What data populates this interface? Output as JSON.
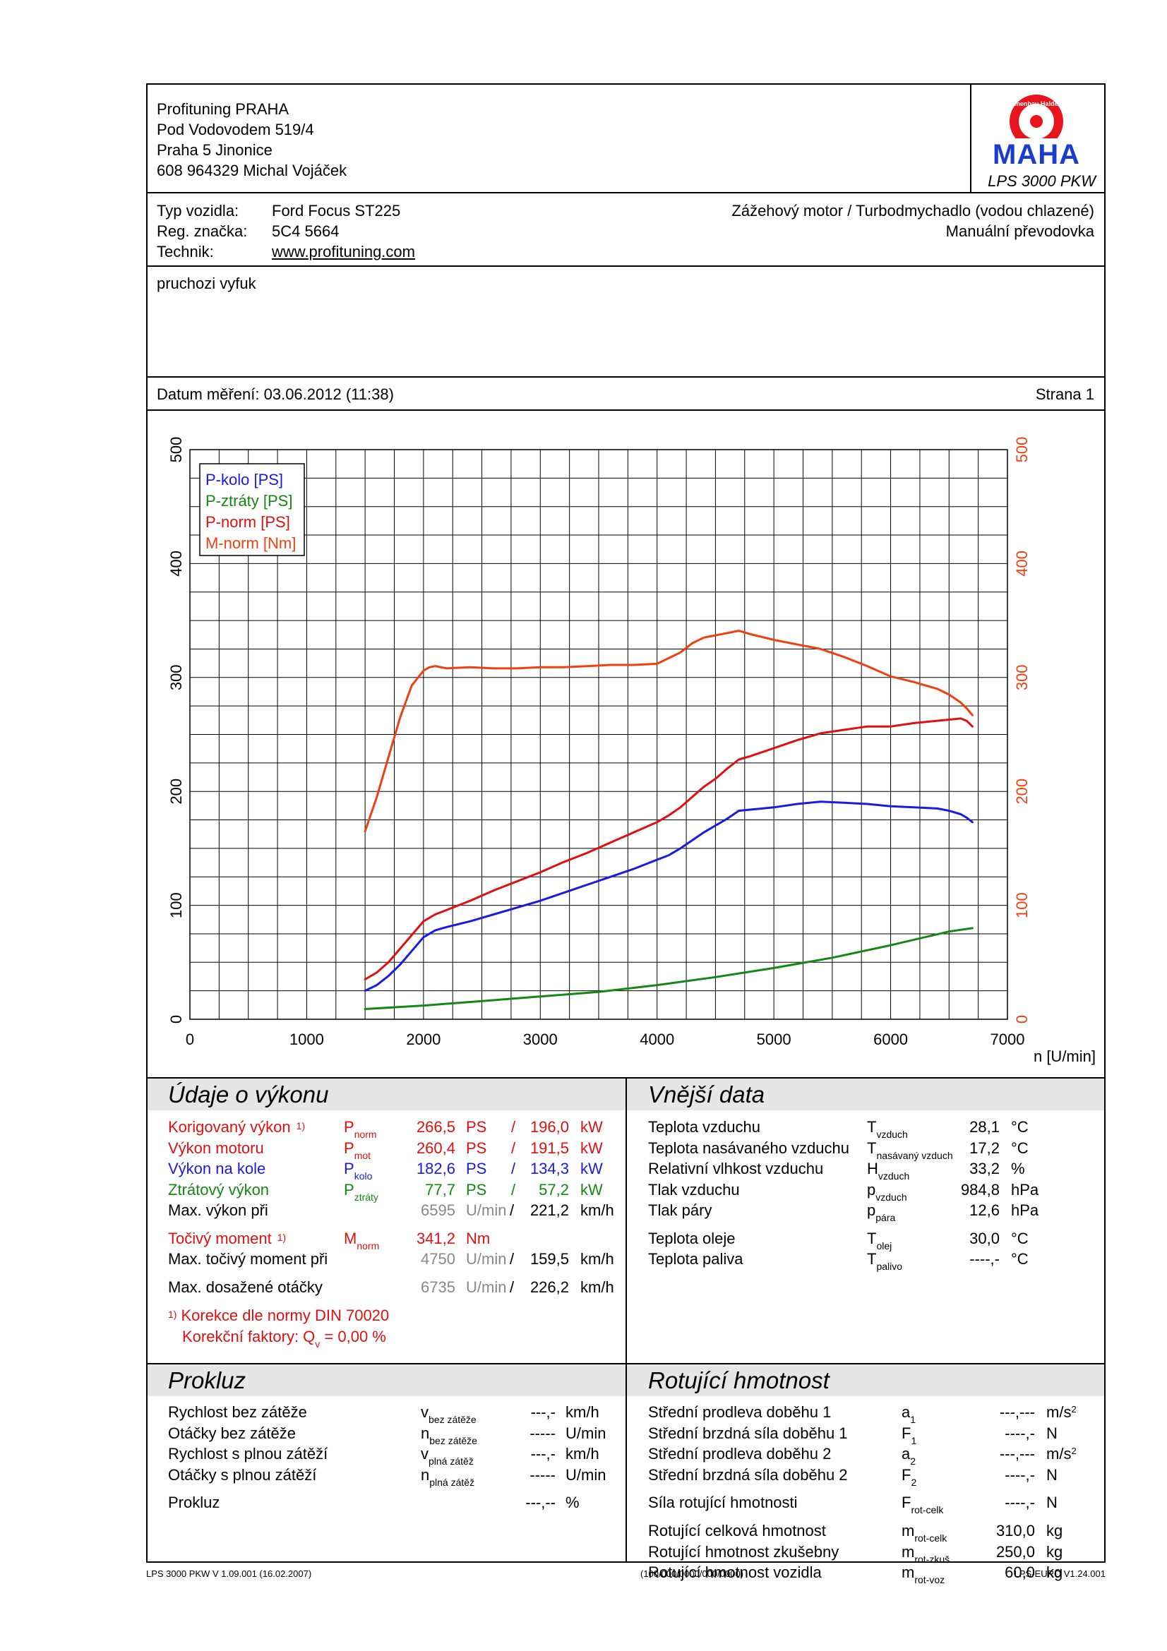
{
  "header": {
    "company_lines": [
      "Profituning PRAHA",
      "Pod Vodovodem 519/4",
      "Praha 5 Jinonice",
      "608 964329 Michal Vojáček"
    ],
    "logo_text": "MAHA",
    "logo_ring_text": "Maschinenbau Haldenwang",
    "model": "LPS 3000 PKW"
  },
  "vehicle": {
    "type_label": "Typ vozidla:",
    "type_value": "Ford Focus ST225",
    "reg_label": "Reg. značka:",
    "reg_value": "5C4 5664",
    "tech_label": "Technik:",
    "tech_value": "www.profituning.com",
    "engine": "Zážehový motor / Turbodmychadlo (vodou chlazené)",
    "gearbox": "Manuální převodovka"
  },
  "note": "pruchozi vyfuk",
  "date_line": "Datum měření: 03.06.2012 (11:38)",
  "page_label": "Strana 1",
  "chart_data": {
    "type": "line",
    "xlabel": "n [U/min]",
    "xlim": [
      0,
      7000
    ],
    "ylim": [
      0,
      500
    ],
    "x_ticks": [
      "0",
      "1000",
      "2000",
      "3000",
      "4000",
      "5000",
      "6000",
      "7000"
    ],
    "y_ticks": [
      "0",
      "100",
      "200",
      "300",
      "400",
      "500"
    ],
    "grid": true,
    "legend_position": "top-left",
    "series": [
      {
        "name": "P-kolo [PS]",
        "color": "#1a1ae6",
        "x": [
          1500,
          1600,
          1700,
          1800,
          1900,
          2000,
          2100,
          2200,
          2400,
          2600,
          2800,
          3000,
          3200,
          3400,
          3600,
          3800,
          4000,
          4100,
          4200,
          4300,
          4400,
          4500,
          4600,
          4700,
          4800,
          5000,
          5200,
          5400,
          5600,
          5800,
          6000,
          6200,
          6400,
          6500,
          6600,
          6650,
          6700
        ],
        "y": [
          25,
          30,
          38,
          48,
          60,
          72,
          78,
          81,
          86,
          92,
          98,
          104,
          111,
          118,
          125,
          132,
          140,
          144,
          150,
          157,
          164,
          170,
          176,
          183,
          184,
          186,
          189,
          191,
          190,
          189,
          187,
          186,
          185,
          183,
          180,
          177,
          173
        ]
      },
      {
        "name": "P-ztráty [PS]",
        "color": "#148814",
        "x": [
          1500,
          2000,
          2500,
          3000,
          3500,
          4000,
          4500,
          5000,
          5500,
          6000,
          6500,
          6700
        ],
        "y": [
          9,
          12,
          16,
          20,
          24,
          30,
          37,
          45,
          54,
          65,
          77,
          80
        ]
      },
      {
        "name": "P-norm [PS]",
        "color": "#e01010",
        "x": [
          1500,
          1600,
          1700,
          1800,
          1900,
          2000,
          2100,
          2200,
          2400,
          2600,
          2800,
          3000,
          3200,
          3400,
          3600,
          3800,
          4000,
          4100,
          4200,
          4300,
          4400,
          4500,
          4600,
          4700,
          4800,
          5000,
          5200,
          5400,
          5600,
          5800,
          6000,
          6200,
          6400,
          6500,
          6600,
          6650,
          6700
        ],
        "y": [
          35,
          41,
          50,
          62,
          74,
          86,
          92,
          96,
          104,
          113,
          121,
          129,
          138,
          146,
          155,
          164,
          173,
          179,
          186,
          195,
          204,
          211,
          220,
          228,
          231,
          238,
          245,
          251,
          254,
          257,
          257,
          260,
          262,
          263,
          264,
          262,
          257
        ]
      },
      {
        "name": "M-norm [Nm]",
        "color": "#f04010",
        "x": [
          1500,
          1600,
          1700,
          1800,
          1900,
          2000,
          2050,
          2100,
          2200,
          2400,
          2600,
          2800,
          3000,
          3200,
          3400,
          3600,
          3800,
          4000,
          4100,
          4200,
          4300,
          4400,
          4500,
          4600,
          4700,
          4800,
          5000,
          5200,
          5400,
          5600,
          5800,
          6000,
          6200,
          6400,
          6500,
          6600,
          6650,
          6700
        ],
        "y": [
          165,
          195,
          230,
          265,
          293,
          306,
          309,
          310,
          308,
          309,
          308,
          308,
          309,
          309,
          310,
          311,
          311,
          312,
          317,
          322,
          330,
          335,
          337,
          339,
          341,
          338,
          333,
          329,
          325,
          318,
          310,
          301,
          296,
          290,
          285,
          278,
          273,
          267
        ]
      }
    ]
  },
  "performance": {
    "title": "Údaje o výkonu",
    "rows": [
      {
        "label": "Korigovaný výkon",
        "note": "1)",
        "sym": "P",
        "sub": "norm",
        "v1": "266,5",
        "u1": "PS",
        "sep": "/",
        "v2": "196,0",
        "u2": "kW"
      },
      {
        "label": "Výkon motoru",
        "note": "",
        "sym": "P",
        "sub": "mot",
        "v1": "260,4",
        "u1": "PS",
        "sep": "/",
        "v2": "191,5",
        "u2": "kW"
      },
      {
        "label": "Výkon na kole",
        "note": "",
        "sym": "P",
        "sub": "kolo",
        "v1": "182,6",
        "u1": "PS",
        "sep": "/",
        "v2": "134,3",
        "u2": "kW"
      },
      {
        "label": "Ztrátový výkon",
        "note": "",
        "sym": "P",
        "sub": "ztráty",
        "v1": "77,7",
        "u1": "PS",
        "sep": "/",
        "v2": "57,2",
        "u2": "kW"
      }
    ],
    "max_power": {
      "label": "Max. výkon při",
      "rpm": "6595",
      "rpm_unit": "U/min",
      "sep": "/",
      "speed": "221,2",
      "speed_unit": "km/h"
    },
    "torque": {
      "label": "Točivý moment",
      "note": "1)",
      "sym": "M",
      "sub": "norm",
      "value": "341,2",
      "unit": "Nm"
    },
    "max_torque": {
      "label": "Max. točivý moment při",
      "rpm": "4750",
      "rpm_unit": "U/min",
      "sep": "/",
      "speed": "159,5",
      "speed_unit": "km/h"
    },
    "max_rpm": {
      "label": "Max. dosažené otáčky",
      "rpm": "6735",
      "rpm_unit": "U/min",
      "sep": "/",
      "speed": "226,2",
      "speed_unit": "km/h"
    },
    "footnote_mark": "1)",
    "footnote": "Korekce dle normy DIN 70020",
    "corr_label": "Korekční faktory: Q",
    "corr_sub": "v",
    "corr_value": "=    0,00 %"
  },
  "external": {
    "title": "Vnější data",
    "rows": [
      {
        "label": "Teplota vzduchu",
        "sym": "T",
        "sub": "vzduch",
        "value": "28,1",
        "unit": "°C"
      },
      {
        "label": "Teplota nasávaného vzduchu",
        "sym": "T",
        "sub": "nasávaný vzduch",
        "value": "17,2",
        "unit": "°C"
      },
      {
        "label": "Relativní vlhkost vzduchu",
        "sym": "H",
        "sub": "vzduch",
        "value": "33,2",
        "unit": "%"
      },
      {
        "label": "Tlak vzduchu",
        "sym": "p",
        "sub": "vzduch",
        "value": "984,8",
        "unit": "hPa"
      },
      {
        "label": "Tlak páry",
        "sym": "p",
        "sub": "pára",
        "value": "12,6",
        "unit": "hPa"
      },
      {
        "label": "Teplota oleje",
        "sym": "T",
        "sub": "olej",
        "value": "30,0",
        "unit": "°C"
      },
      {
        "label": "Teplota paliva",
        "sym": "T",
        "sub": "palivo",
        "value": "----,-",
        "unit": "°C"
      }
    ]
  },
  "slip": {
    "title": "Prokluz",
    "rows": [
      {
        "label": "Rychlost bez zátěže",
        "sym": "v",
        "sub": "bez zátěže",
        "value": "---,-",
        "unit": "km/h"
      },
      {
        "label": "Otáčky bez zátěže",
        "sym": "n",
        "sub": "bez zátěže",
        "value": "-----",
        "unit": "U/min"
      },
      {
        "label": "Rychlost s plnou zátěží",
        "sym": "v",
        "sub": "plná zátěž",
        "value": "---,-",
        "unit": "km/h"
      },
      {
        "label": "Otáčky s plnou zátěží",
        "sym": "n",
        "sub": "plná zátěž",
        "value": "-----",
        "unit": "U/min"
      }
    ],
    "prokluz": {
      "label": "Prokluz",
      "value": "---,--",
      "unit": "%"
    }
  },
  "rotating": {
    "title": "Rotující hmotnost",
    "rows": [
      {
        "label": "Střední prodleva doběhu 1",
        "sym": "a",
        "sub": "1",
        "value": "---,---",
        "unit": "m/s",
        "sup": "2"
      },
      {
        "label": "Střední brzdná síla doběhu 1",
        "sym": "F",
        "sub": "1",
        "value": "----,-",
        "unit": "N",
        "sup": ""
      },
      {
        "label": "Střední prodleva doběhu 2",
        "sym": "a",
        "sub": "2",
        "value": "---,---",
        "unit": "m/s",
        "sup": "2"
      },
      {
        "label": "Střední brzdná síla doběhu 2",
        "sym": "F",
        "sub": "2",
        "value": "----,-",
        "unit": "N",
        "sup": ""
      },
      {
        "label": "Síla rotující hmotnosti",
        "sym": "F",
        "sub": "rot-celk",
        "value": "----,-",
        "unit": "N",
        "sup": ""
      },
      {
        "label": "Rotující celková hmotnost",
        "sym": "m",
        "sub": "rot-celk",
        "value": "310,0",
        "unit": "kg",
        "sup": ""
      },
      {
        "label": "Rotující hmotnost zkušebny",
        "sym": "m",
        "sub": "rot-zkuš",
        "value": "250,0",
        "unit": "kg",
        "sup": ""
      },
      {
        "label": "Rotující hmotnost vozidla",
        "sym": "m",
        "sub": "rot-voz",
        "value": "60,0",
        "unit": "kg",
        "sup": ""
      }
    ]
  },
  "footer": {
    "left": "LPS 3000 PKW V 1.09.001 (16.02.2007)",
    "center": "(100/000/0000/000/0000)",
    "right": "LPS-EURO V1.24.001"
  }
}
